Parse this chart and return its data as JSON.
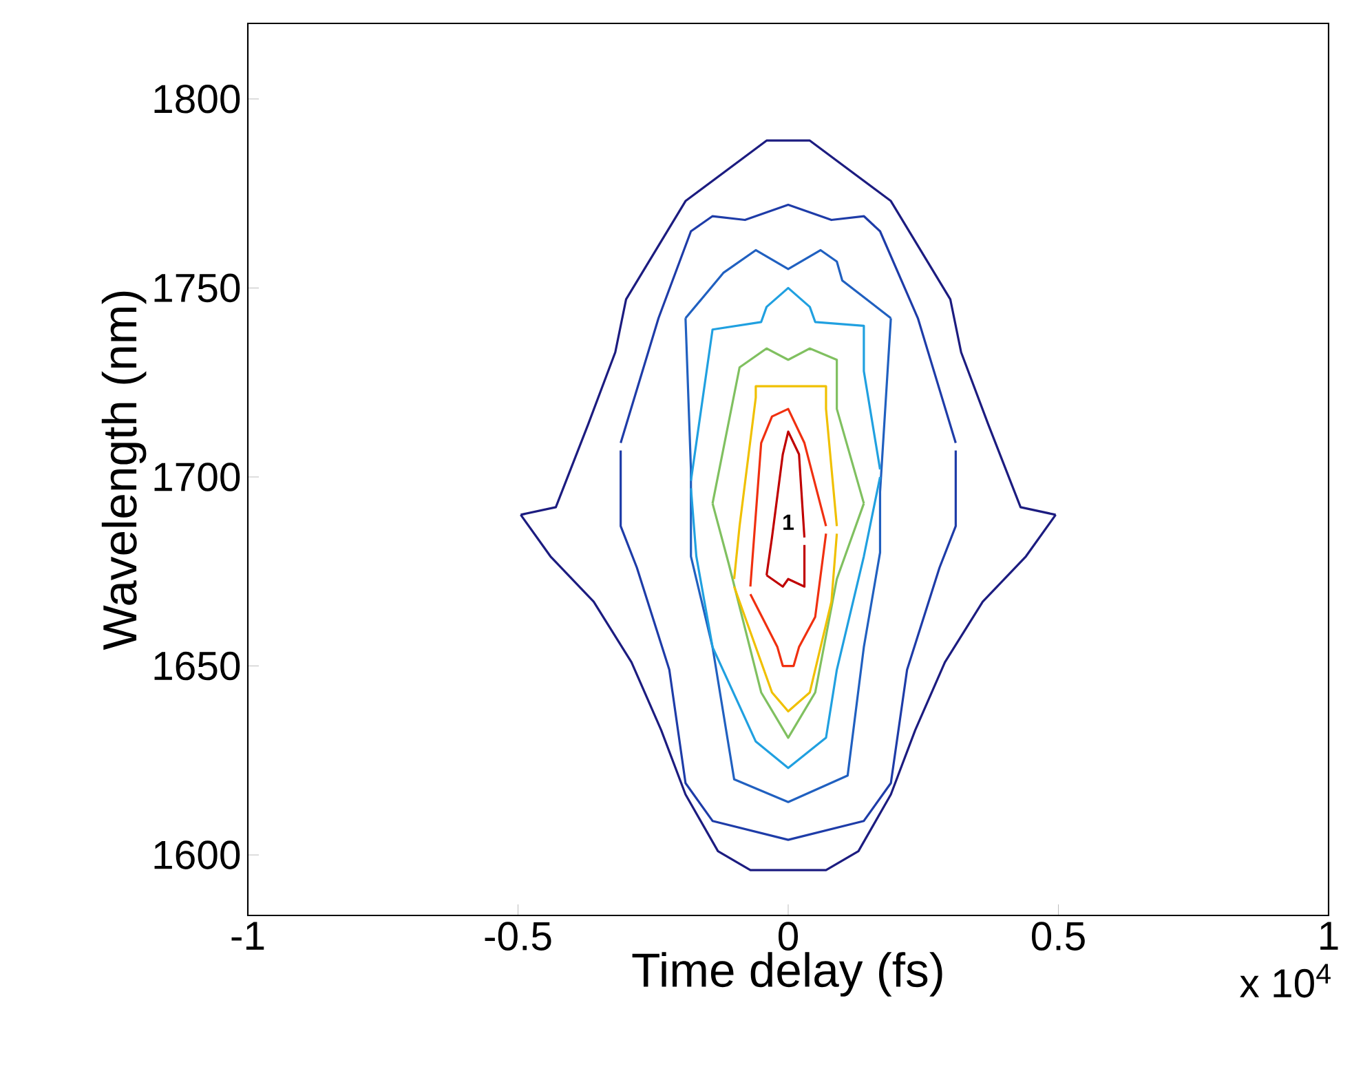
{
  "chart_data": {
    "type": "line",
    "xlabel": "Time delay (fs)",
    "ylabel": "Wavelength (nm)",
    "xlim": [
      -1,
      1
    ],
    "ylim": [
      1584,
      1820
    ],
    "xticks": [
      -1,
      -0.5,
      0,
      0.5,
      1
    ],
    "yticks": [
      1600,
      1650,
      1700,
      1750,
      1800
    ],
    "grid": false,
    "marker": "none",
    "line_style": "solid",
    "annotations": [
      "x 10$^{4}$",
      {
        "text": "1",
        "x": 0,
        "y": 1688
      }
    ],
    "series": [
      {
        "color": "#1c1c80",
        "x": [
          -0.495,
          -0.43,
          -0.37,
          -0.32,
          -0.3,
          -0.19,
          -0.04,
          0.04,
          0.19,
          0.3,
          0.32,
          0.37,
          0.43,
          0.495
        ],
        "values": [
          1690,
          1692,
          1714,
          1733,
          1747,
          1773,
          1789,
          1789,
          1773,
          1747,
          1733,
          1714,
          1692,
          1690
        ]
      },
      {
        "color": "#1c1c80",
        "x": [
          -0.495,
          -0.44,
          -0.36,
          -0.29,
          -0.235,
          -0.19,
          -0.13,
          -0.07,
          0.07,
          0.13,
          0.19,
          0.235,
          0.29,
          0.36,
          0.44,
          0.495
        ],
        "values": [
          1690,
          1679,
          1667,
          1651,
          1633,
          1616,
          1601,
          1596,
          1596,
          1601,
          1616,
          1633,
          1651,
          1667,
          1679,
          1690
        ]
      },
      {
        "color": "#1e3ca8",
        "x": [
          -0.31,
          -0.24,
          -0.18,
          -0.14,
          -0.08,
          0,
          0.08,
          0.14,
          0.17,
          0.24,
          0.31
        ],
        "values": [
          1709,
          1742,
          1765,
          1769,
          1768,
          1772,
          1768,
          1769,
          1765,
          1742,
          1709
        ]
      },
      {
        "color": "#1e3ca8",
        "x": [
          -0.31,
          -0.31,
          -0.28,
          -0.22,
          -0.19,
          -0.14,
          0,
          0.14,
          0.19,
          0.22,
          0.28,
          0.31,
          0.31
        ],
        "values": [
          1707,
          1687,
          1676,
          1649,
          1619,
          1609,
          1604,
          1609,
          1619,
          1649,
          1676,
          1687,
          1707
        ]
      },
      {
        "color": "#2060c0",
        "x": [
          -0.19,
          -0.12,
          -0.06,
          0,
          0.06,
          0.09,
          0.1,
          0.19
        ],
        "values": [
          1742,
          1754,
          1760,
          1755,
          1760,
          1757,
          1752,
          1742
        ]
      },
      {
        "color": "#2060c0",
        "x": [
          -0.19,
          -0.18,
          -0.18,
          -0.14,
          -0.1,
          0,
          0.11,
          0.14,
          0.17,
          0.17,
          0.19
        ],
        "values": [
          1742,
          1702,
          1679,
          1655,
          1620,
          1614,
          1621,
          1655,
          1680,
          1696,
          1742
        ]
      },
      {
        "color": "#20a0e0",
        "x": [
          -0.18,
          -0.14,
          -0.05,
          -0.04,
          0,
          0.04,
          0.05,
          0.14,
          0.14,
          0.17
        ],
        "values": [
          1699,
          1739,
          1741,
          1745,
          1750,
          1745,
          1741,
          1740,
          1728,
          1702
        ]
      },
      {
        "color": "#20a0e0",
        "x": [
          -0.18,
          -0.17,
          -0.14,
          -0.06,
          0,
          0.07,
          0.09,
          0.14,
          0.17
        ],
        "values": [
          1697,
          1679,
          1655,
          1630,
          1623,
          1631,
          1649,
          1679,
          1700
        ]
      },
      {
        "color": "#80c060",
        "x": [
          -0.14,
          -0.09,
          -0.04,
          0,
          0.04,
          0.09,
          0.09,
          0.14
        ],
        "values": [
          1693,
          1729,
          1734,
          1731,
          1734,
          1731,
          1718,
          1693
        ]
      },
      {
        "color": "#80c060",
        "x": [
          -0.14,
          -0.11,
          -0.05,
          0,
          0.05,
          0.09,
          0.14
        ],
        "values": [
          1693,
          1677,
          1643,
          1631,
          1643,
          1673,
          1693
        ]
      },
      {
        "color": "#f0c000",
        "x": [
          -0.1,
          -0.09,
          -0.06,
          -0.06,
          0,
          0.07,
          0.07,
          0.09
        ],
        "values": [
          1673,
          1687,
          1721,
          1724,
          1724,
          1724,
          1718,
          1687
        ]
      },
      {
        "color": "#f0c000",
        "x": [
          -0.1,
          -0.03,
          0,
          0.04,
          0.08,
          0.09
        ],
        "values": [
          1671,
          1643,
          1638,
          1643,
          1667,
          1685
        ]
      },
      {
        "color": "#f03010",
        "x": [
          -0.07,
          -0.05,
          -0.03,
          0,
          0.03,
          0.07
        ],
        "values": [
          1671,
          1709,
          1716,
          1718,
          1709,
          1687
        ]
      },
      {
        "color": "#f03010",
        "x": [
          -0.07,
          -0.02,
          -0.01,
          0.01,
          0.02,
          0.05,
          0.07
        ],
        "values": [
          1669,
          1655,
          1650,
          1650,
          1655,
          1663,
          1685
        ]
      },
      {
        "color": "#c00000",
        "x": [
          -0.04,
          -0.03,
          -0.01,
          0,
          0.02,
          0.03
        ],
        "values": [
          1674,
          1684,
          1706,
          1712,
          1706,
          1684
        ]
      },
      {
        "color": "#c00000",
        "x": [
          -0.04,
          -0.01,
          0,
          0.03,
          0.03
        ],
        "values": [
          1674,
          1671,
          1673,
          1671,
          1682
        ]
      }
    ]
  }
}
